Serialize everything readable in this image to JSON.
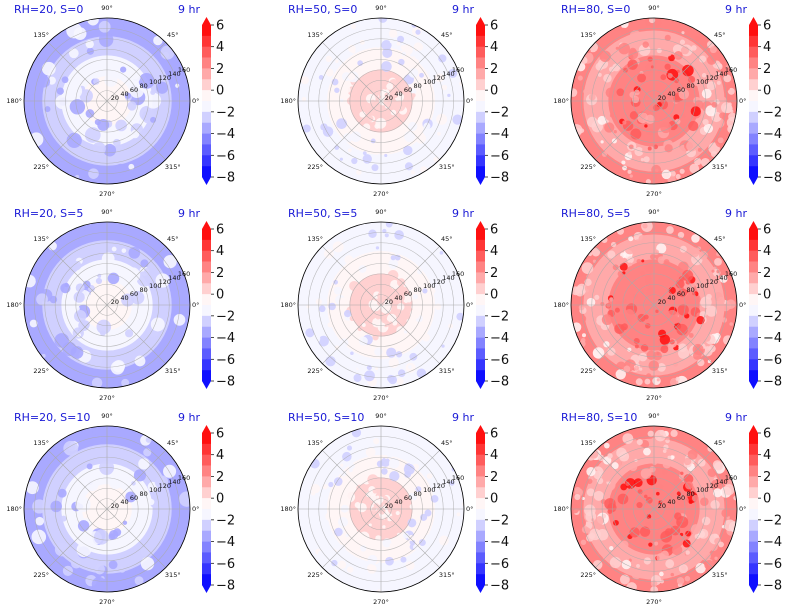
{
  "chart_data": [
    {
      "type": "heatmap",
      "kind": "polar-contour",
      "title": "RH=20, S=0",
      "time_label": "9 hr",
      "rh": 20,
      "s": 0,
      "mean_level": -4,
      "center_level": 0,
      "r_ticks": [
        "20",
        "40",
        "60",
        "80",
        "100",
        "120",
        "140",
        "160"
      ],
      "theta_ticks": [
        "0°",
        "45°",
        "90°",
        "135°",
        "180°",
        "225°",
        "270°",
        "315°"
      ],
      "colorbar": {
        "ticks": [
          "6",
          "4",
          "2",
          "0",
          "−2",
          "−4",
          "−6",
          "−8"
        ],
        "range": [
          -8,
          7
        ],
        "cmap": "bwr"
      }
    },
    {
      "type": "heatmap",
      "kind": "polar-contour",
      "title": "RH=50, S=0",
      "time_label": "9 hr",
      "rh": 50,
      "s": 0,
      "mean_level": -2,
      "center_level": 0,
      "r_ticks": [
        "20",
        "40",
        "60",
        "80",
        "100",
        "120",
        "140",
        "160"
      ],
      "theta_ticks": [
        "0°",
        "45°",
        "90°",
        "135°",
        "180°",
        "225°",
        "270°",
        "315°"
      ],
      "colorbar": {
        "ticks": [
          "6",
          "4",
          "2",
          "0",
          "−2",
          "−4",
          "−6",
          "−8"
        ],
        "range": [
          -8,
          7
        ],
        "cmap": "bwr"
      }
    },
    {
      "type": "heatmap",
      "kind": "polar-contour",
      "title": "RH=80, S=0",
      "time_label": "9 hr",
      "rh": 80,
      "s": 0,
      "mean_level": 2,
      "center_level": 3,
      "r_ticks": [
        "20",
        "40",
        "60",
        "80",
        "100",
        "120",
        "140",
        "160"
      ],
      "theta_ticks": [
        "0°",
        "45°",
        "90°",
        "135°",
        "180°",
        "225°",
        "270°",
        "315°"
      ],
      "colorbar": {
        "ticks": [
          "6",
          "4",
          "2",
          "0",
          "−2",
          "−4",
          "−6",
          "−8"
        ],
        "range": [
          -8,
          7
        ],
        "cmap": "bwr"
      }
    },
    {
      "type": "heatmap",
      "kind": "polar-contour",
      "title": "RH=20, S=5",
      "time_label": "9 hr",
      "rh": 20,
      "s": 5,
      "mean_level": -4,
      "center_level": 0,
      "r_ticks": [
        "20",
        "40",
        "60",
        "80",
        "100",
        "120",
        "140",
        "160"
      ],
      "theta_ticks": [
        "0°",
        "45°",
        "90°",
        "135°",
        "180°",
        "225°",
        "270°",
        "315°"
      ],
      "colorbar": {
        "ticks": [
          "6",
          "4",
          "2",
          "0",
          "−2",
          "−4",
          "−6",
          "−8"
        ],
        "range": [
          -8,
          7
        ],
        "cmap": "bwr"
      }
    },
    {
      "type": "heatmap",
      "kind": "polar-contour",
      "title": "RH=50, S=5",
      "time_label": "9 hr",
      "rh": 50,
      "s": 5,
      "mean_level": -2,
      "center_level": 0,
      "r_ticks": [
        "20",
        "40",
        "60",
        "80",
        "100",
        "120",
        "140",
        "160"
      ],
      "theta_ticks": [
        "0°",
        "45°",
        "90°",
        "135°",
        "180°",
        "225°",
        "270°",
        "315°"
      ],
      "colorbar": {
        "ticks": [
          "6",
          "4",
          "2",
          "0",
          "−2",
          "−4",
          "−6",
          "−8"
        ],
        "range": [
          -8,
          7
        ],
        "cmap": "bwr"
      }
    },
    {
      "type": "heatmap",
      "kind": "polar-contour",
      "title": "RH=80, S=5",
      "time_label": "9 hr",
      "rh": 80,
      "s": 5,
      "mean_level": 2,
      "center_level": 3,
      "r_ticks": [
        "20",
        "40",
        "60",
        "80",
        "100",
        "120",
        "140",
        "160"
      ],
      "theta_ticks": [
        "0°",
        "45°",
        "90°",
        "135°",
        "180°",
        "225°",
        "270°",
        "315°"
      ],
      "colorbar": {
        "ticks": [
          "6",
          "4",
          "2",
          "0",
          "−2",
          "−4",
          "−6",
          "−8"
        ],
        "range": [
          -8,
          7
        ],
        "cmap": "bwr"
      }
    },
    {
      "type": "heatmap",
      "kind": "polar-contour",
      "title": "RH=20, S=10",
      "time_label": "9 hr",
      "rh": 20,
      "s": 10,
      "mean_level": -4,
      "center_level": 0,
      "r_ticks": [
        "20",
        "40",
        "60",
        "80",
        "100",
        "120",
        "140",
        "160"
      ],
      "theta_ticks": [
        "0°",
        "45°",
        "90°",
        "135°",
        "180°",
        "225°",
        "270°",
        "315°"
      ],
      "colorbar": {
        "ticks": [
          "6",
          "4",
          "2",
          "0",
          "−2",
          "−4",
          "−6",
          "−8"
        ],
        "range": [
          -8,
          7
        ],
        "cmap": "bwr"
      }
    },
    {
      "type": "heatmap",
      "kind": "polar-contour",
      "title": "RH=50, S=10",
      "time_label": "9 hr",
      "rh": 50,
      "s": 10,
      "mean_level": -2,
      "center_level": 0,
      "r_ticks": [
        "20",
        "40",
        "60",
        "80",
        "100",
        "120",
        "140",
        "160"
      ],
      "theta_ticks": [
        "0°",
        "45°",
        "90°",
        "135°",
        "180°",
        "225°",
        "270°",
        "315°"
      ],
      "colorbar": {
        "ticks": [
          "6",
          "4",
          "2",
          "0",
          "−2",
          "−4",
          "−6",
          "−8"
        ],
        "range": [
          -8,
          7
        ],
        "cmap": "bwr"
      }
    },
    {
      "type": "heatmap",
      "kind": "polar-contour",
      "title": "RH=80, S=10",
      "time_label": "9 hr",
      "rh": 80,
      "s": 10,
      "mean_level": 2,
      "center_level": 3,
      "r_ticks": [
        "20",
        "40",
        "60",
        "80",
        "100",
        "120",
        "140",
        "160"
      ],
      "theta_ticks": [
        "0°",
        "45°",
        "90°",
        "135°",
        "180°",
        "225°",
        "270°",
        "315°"
      ],
      "colorbar": {
        "ticks": [
          "6",
          "4",
          "2",
          "0",
          "−2",
          "−4",
          "−6",
          "−8"
        ],
        "range": [
          -8,
          7
        ],
        "cmap": "bwr"
      }
    }
  ],
  "colors": {
    "title": "#1a1ad6",
    "cmap_levels": [
      "#0f0fff",
      "#3535ff",
      "#5c5cff",
      "#8383ff",
      "#a9a9ff",
      "#d0d0ff",
      "#f6f6ff",
      "#fff6f6",
      "#ffd0d0",
      "#ffa9a9",
      "#ff8383",
      "#ff5c5c",
      "#ff3535",
      "#ff0f0f"
    ]
  }
}
